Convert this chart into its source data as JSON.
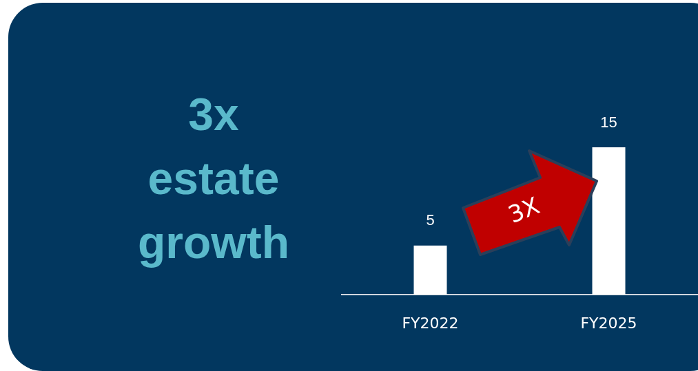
{
  "chart_data": {
    "type": "bar",
    "title": "3x\nestate\ngrowth",
    "categories": [
      "FY2022",
      "FY2025"
    ],
    "values": [
      5,
      15
    ],
    "color": "#ffffff",
    "data_labels": true,
    "grid": false,
    "annotations": [
      "3X"
    ]
  }
}
